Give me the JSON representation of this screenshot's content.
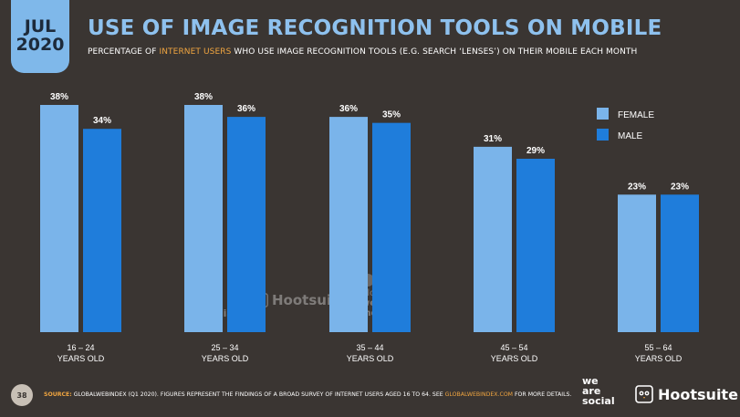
{
  "badge": {
    "month": "JUL",
    "year": "2020"
  },
  "title": "USE OF IMAGE RECOGNITION TOOLS ON MOBILE",
  "subtitle": {
    "pre": "PERCENTAGE OF ",
    "highlight": "INTERNET USERS",
    "post": " WHO USE IMAGE RECOGNITION TOOLS (E.G. SEARCH ‘LENSES’) ON THEIR MOBILE EACH MONTH"
  },
  "chart_data": {
    "type": "bar",
    "categories": [
      [
        "16 – 24",
        "YEARS OLD"
      ],
      [
        "25 – 34",
        "YEARS OLD"
      ],
      [
        "35 – 44",
        "YEARS OLD"
      ],
      [
        "45 – 54",
        "YEARS OLD"
      ],
      [
        "55 – 64",
        "YEARS OLD"
      ]
    ],
    "series": [
      {
        "name": "FEMALE",
        "color": "#7ab4ea",
        "values": [
          38,
          38,
          36,
          31,
          23
        ],
        "labels": [
          "38%",
          "38%",
          "36%",
          "31%",
          "23%"
        ]
      },
      {
        "name": "MALE",
        "color": "#1f7ddb",
        "values": [
          34,
          36,
          35,
          29,
          23
        ],
        "labels": [
          "34%",
          "36%",
          "35%",
          "29%",
          "23%"
        ]
      }
    ],
    "ylim": [
      0,
      38
    ],
    "legend": "top-right",
    "grid": false
  },
  "footer": {
    "page": "38",
    "source_label": "SOURCE:",
    "source_text": " GLOBALWEBINDEX (Q1 2020). FIGURES REPRESENT THE FINDINGS OF A BROAD SURVEY OF INTERNET USERS AGED 16 TO 64. SEE ",
    "source_link": "GLOBALWEBINDEX.COM",
    "source_tail": " FOR MORE DETAILS."
  },
  "logos": {
    "wearesocial": [
      "we",
      "are",
      "social"
    ],
    "hootsuite": "Hootsuite"
  },
  "watermarks": {
    "wearesocial": [
      "we",
      "are",
      "social"
    ],
    "hootsuite": "Hootsuite",
    "gwi": [
      "global",
      "web",
      "index"
    ]
  }
}
